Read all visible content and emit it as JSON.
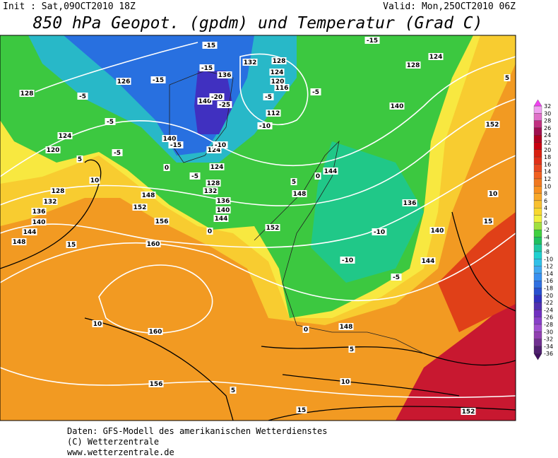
{
  "header": {
    "init": "Init : Sat,09OCT2010 18Z",
    "valid": "Valid: Mon,25OCT2010 06Z",
    "title": "850 hPa Geopot. (gpdm) und Temperatur (Grad C)"
  },
  "colorbar": {
    "labels": [
      32,
      30,
      28,
      26,
      24,
      22,
      20,
      18,
      16,
      14,
      12,
      10,
      8,
      6,
      4,
      2,
      0,
      -2,
      -4,
      -6,
      -8,
      -10,
      -12,
      -14,
      -16,
      -18,
      -20,
      -22,
      -24,
      -26,
      -28,
      -30,
      -32,
      -34,
      -36
    ],
    "colors": [
      "#f0a0f0",
      "#e070c8",
      "#c03080",
      "#a01050",
      "#b00020",
      "#c80010",
      "#d82010",
      "#e03018",
      "#e84820",
      "#f06020",
      "#f07820",
      "#f89020",
      "#f8a828",
      "#f8c030",
      "#f8d830",
      "#f0f040",
      "#a0e040",
      "#40d040",
      "#20c060",
      "#20c8a0",
      "#20d0d0",
      "#30c0e8",
      "#40a8f0",
      "#3890f0",
      "#3070e0",
      "#2850d0",
      "#3030c0",
      "#5030b0",
      "#7030c0",
      "#8840c8",
      "#a050d0",
      "#9040b0",
      "#703090",
      "#502070"
    ]
  },
  "map": {
    "geopotential_labels": [
      126,
      132,
      128,
      124,
      128,
      136,
      124,
      120,
      116,
      112,
      140,
      140,
      152,
      124,
      120,
      140,
      124,
      124,
      128,
      132,
      136,
      140,
      144,
      148,
      152,
      156,
      160,
      152,
      148,
      144,
      136,
      140,
      144,
      148,
      160,
      156,
      152,
      128,
      132,
      136,
      140,
      144,
      148,
      128
    ],
    "temperature_labels": [
      -15,
      -5,
      -15,
      -15,
      -5,
      -5,
      -10,
      -5,
      -5,
      -15,
      -5,
      0,
      0,
      -20,
      -25,
      -10,
      5,
      0,
      -10,
      -10,
      -5,
      10,
      15,
      10,
      15,
      10,
      5,
      0,
      5,
      10,
      15,
      5,
      -15,
      5
    ]
  },
  "footer": {
    "lines": [
      "Daten: GFS-Modell des amerikanischen Wetterdienstes",
      "(C) Wetterzentrale",
      "www.wetterzentrale.de"
    ]
  }
}
